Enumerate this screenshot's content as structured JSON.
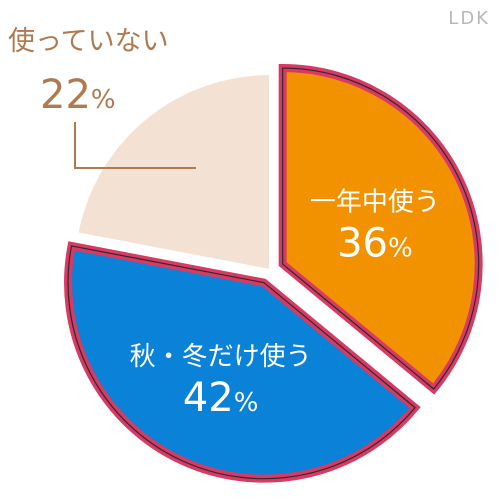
{
  "brand": "LDK",
  "chart_data": {
    "type": "pie",
    "slices": [
      {
        "label": "一年中使う",
        "value": 36,
        "value_text": "36",
        "unit": "%",
        "color": "#f39200",
        "text_color": "#ffffff"
      },
      {
        "label": "秋・冬だけ使う",
        "value": 42,
        "value_text": "42",
        "unit": "%",
        "color": "#0a82d8",
        "text_color": "#ffffff"
      },
      {
        "label": "使っていない",
        "value": 22,
        "value_text": "22",
        "unit": "%",
        "color": "#f3e1d3",
        "text_color": "#b07a50"
      }
    ],
    "border_color": "#d83a63",
    "emphasized": [
      "一年中使う",
      "秋・冬だけ使う"
    ]
  }
}
